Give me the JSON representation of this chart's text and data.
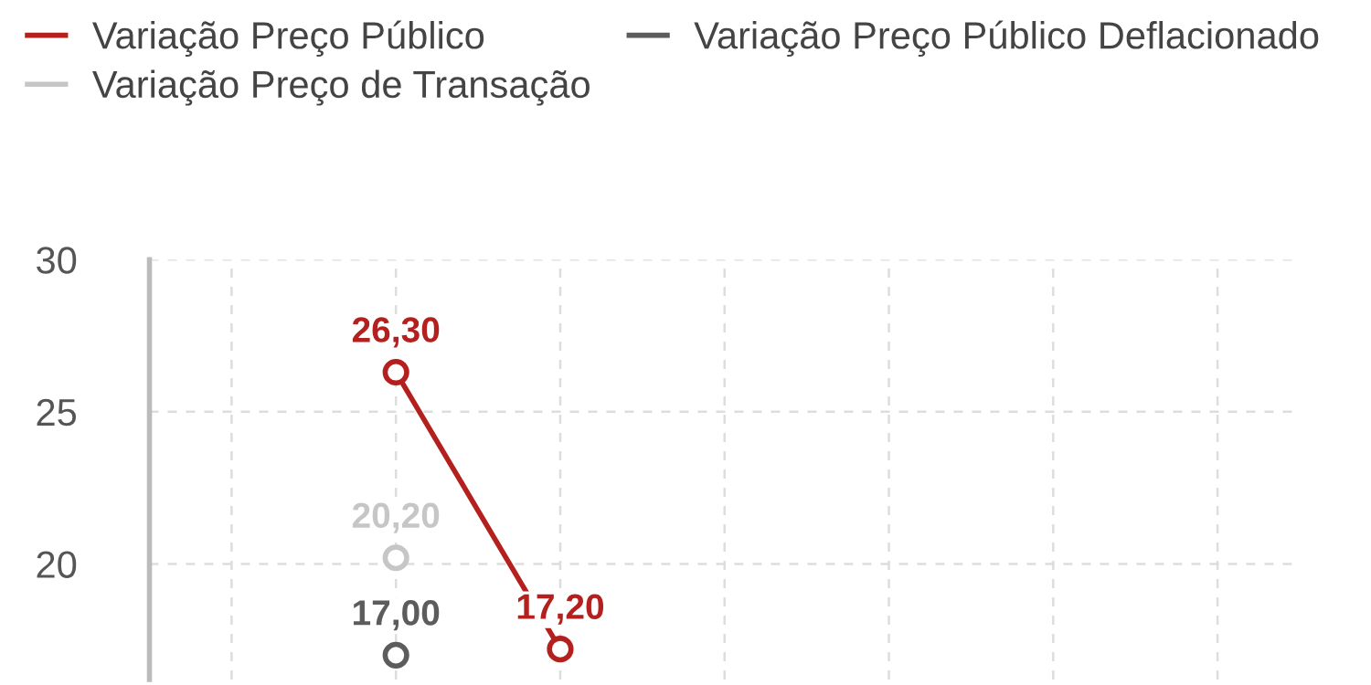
{
  "chart_data": {
    "type": "line",
    "categories": [
      null,
      null,
      null,
      null,
      null,
      null,
      null
    ],
    "series": [
      {
        "name": "Variação Preço Público",
        "color": "#b3201e",
        "values": [
          null,
          26.3,
          17.2,
          null,
          null,
          null,
          null
        ],
        "value_labels": [
          null,
          "26,30",
          "17,20",
          null,
          null,
          null,
          null
        ]
      },
      {
        "name": "Variação Preço Público Deflacionado",
        "color": "#5c5c5c",
        "values": [
          null,
          17.0,
          null,
          null,
          null,
          null,
          null
        ],
        "value_labels": [
          null,
          "17,00",
          null,
          null,
          null,
          null,
          null
        ]
      },
      {
        "name": "Variação Preço de Transação",
        "color": "#c6c6c6",
        "values": [
          null,
          20.2,
          null,
          null,
          null,
          null,
          null
        ],
        "value_labels": [
          null,
          "20,20",
          null,
          null,
          null,
          null,
          null
        ]
      }
    ],
    "ylim": [
      16.2,
      30
    ],
    "yticks": [
      20,
      25,
      30
    ],
    "grid": true,
    "legend": "top left",
    "marker": "circle",
    "line_style": "solid"
  }
}
